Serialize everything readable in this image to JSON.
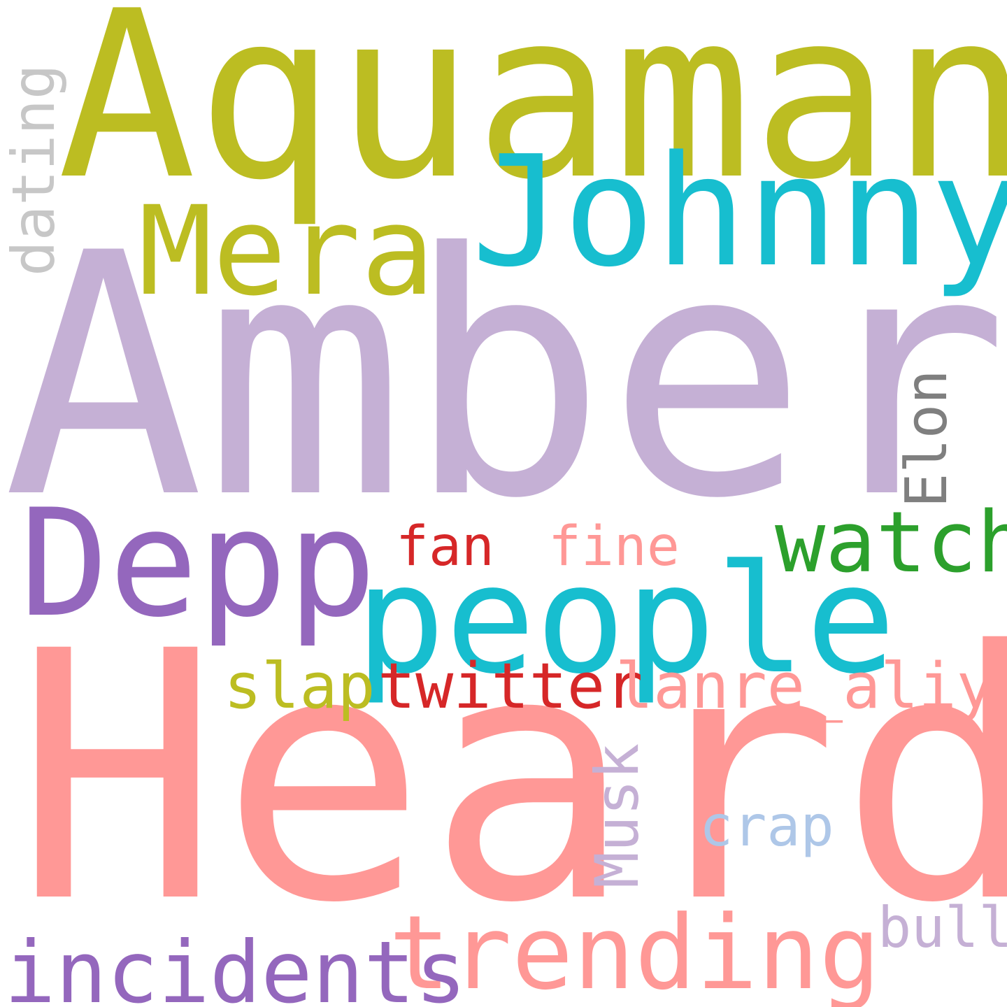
{
  "background": "#ffffff",
  "words": {
    "aquaman": {
      "text": "Aquaman",
      "color": "#bcbd22"
    },
    "johnny": {
      "text": "Johnny",
      "color": "#17becf"
    },
    "mera": {
      "text": "Mera",
      "color": "#bcbd22"
    },
    "dating": {
      "text": "dating",
      "color": "#c7c7c7"
    },
    "amber": {
      "text": "Amber",
      "color": "#c5b0d5"
    },
    "elon": {
      "text": "Elon",
      "color": "#7f7f7f"
    },
    "depp": {
      "text": "Depp",
      "color": "#9467bd"
    },
    "watch": {
      "text": "watch",
      "color": "#2ca02c"
    },
    "fan": {
      "text": "fan",
      "color": "#d62728"
    },
    "fine": {
      "text": "fine",
      "color": "#ff9896"
    },
    "people": {
      "text": "people",
      "color": "#17becf"
    },
    "heard": {
      "text": "Heard",
      "color": "#ff9896"
    },
    "slap": {
      "text": "slap",
      "color": "#bcbd22"
    },
    "twitter": {
      "text": "twitter",
      "color": "#d62728"
    },
    "lanre": {
      "text": "lanre_aliyu",
      "color": "#ff9896"
    },
    "musk": {
      "text": "Musk",
      "color": "#c5b0d5"
    },
    "crap": {
      "text": "crap",
      "color": "#aec7e8"
    },
    "bull": {
      "text": "bull",
      "color": "#c5b0d5"
    },
    "trending": {
      "text": "trending",
      "color": "#ff9896"
    },
    "incidents": {
      "text": "incidents",
      "color": "#9467bd"
    }
  }
}
